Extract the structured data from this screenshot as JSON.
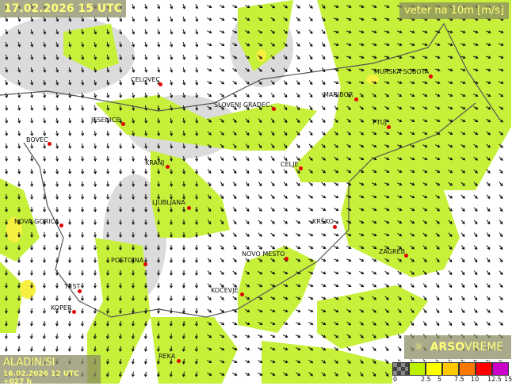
{
  "header": {
    "title": "17.02.2026 15 UTC",
    "parameter": "veter na 10m [m/s]"
  },
  "model": {
    "name": "ALADIN/SI",
    "run": "16.02.2026 12 UTC +027 h"
  },
  "brand": {
    "name_bold": "ARSO",
    "name_light": "VREME",
    "icon": "weather-sun-icon"
  },
  "legend": {
    "ticks": [
      "0",
      "2.5",
      "5",
      "7.5",
      "10",
      "12.5",
      "15"
    ],
    "colors": [
      "#555555",
      "#bbf000",
      "#ffff00",
      "#ffc800",
      "#ff7800",
      "#ff0000",
      "#c800c8"
    ]
  },
  "colors": {
    "wind_moderate": "#c6f03a",
    "wind_strong": "#f8f040",
    "city_dot": "#e00000"
  },
  "cities": [
    {
      "name": "CELOVEC"
    },
    {
      "name": "SLOVENJ GRADEC"
    },
    {
      "name": "MURSKA SOBOTA"
    },
    {
      "name": "MARIBOR"
    },
    {
      "name": "PTUJ"
    },
    {
      "name": "JESENICE"
    },
    {
      "name": "BOVEC"
    },
    {
      "name": "KRANJ"
    },
    {
      "name": "CELJE"
    },
    {
      "name": "LJUBLJANA"
    },
    {
      "name": "KRŠKO"
    },
    {
      "name": "NOVA GORICA"
    },
    {
      "name": "POSTOJNA"
    },
    {
      "name": "NOVO MESTO"
    },
    {
      "name": "ZAGREB"
    },
    {
      "name": "TRST"
    },
    {
      "name": "KOPER"
    },
    {
      "name": "KOČEVJE"
    },
    {
      "name": "REKA"
    }
  ]
}
